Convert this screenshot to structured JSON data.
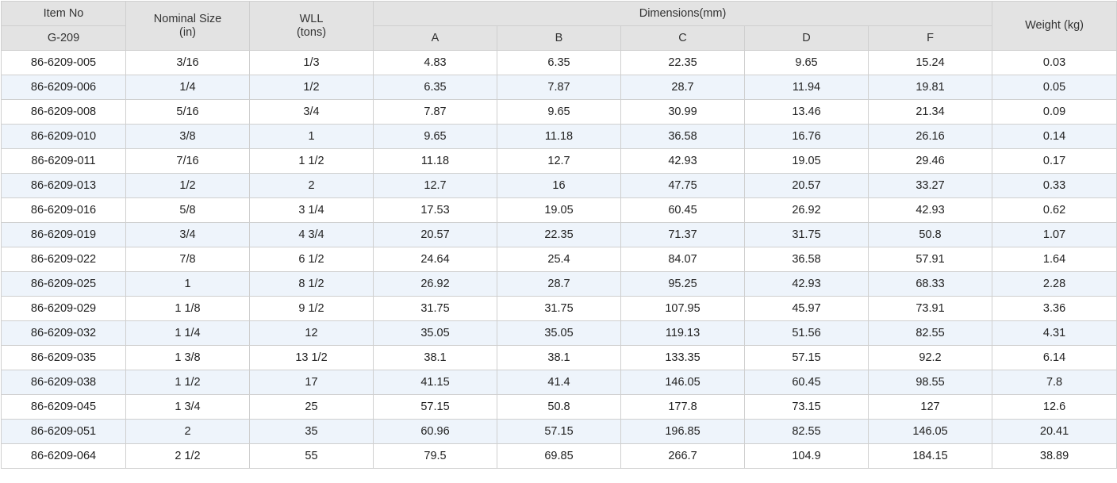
{
  "table": {
    "header": {
      "item_no": "Item No",
      "series": "G-209",
      "nominal_size": "Nominal Size",
      "nominal_size_unit": "(in)",
      "wll": "WLL",
      "wll_unit": "(tons)",
      "dimensions": "Dimensions(mm)",
      "dims": [
        "A",
        "B",
        "C",
        "D",
        "F"
      ],
      "weight": "Weight (kg)"
    },
    "rows": [
      [
        "86-6209-005",
        "3/16",
        "1/3",
        "4.83",
        "6.35",
        "22.35",
        "9.65",
        "15.24",
        "0.03"
      ],
      [
        "86-6209-006",
        "1/4",
        "1/2",
        "6.35",
        "7.87",
        "28.7",
        "11.94",
        "19.81",
        "0.05"
      ],
      [
        "86-6209-008",
        "5/16",
        "3/4",
        "7.87",
        "9.65",
        "30.99",
        "13.46",
        "21.34",
        "0.09"
      ],
      [
        "86-6209-010",
        "3/8",
        "1",
        "9.65",
        "11.18",
        "36.58",
        "16.76",
        "26.16",
        "0.14"
      ],
      [
        "86-6209-011",
        "7/16",
        "1 1/2",
        "11.18",
        "12.7",
        "42.93",
        "19.05",
        "29.46",
        "0.17"
      ],
      [
        "86-6209-013",
        "1/2",
        "2",
        "12.7",
        "16",
        "47.75",
        "20.57",
        "33.27",
        "0.33"
      ],
      [
        "86-6209-016",
        "5/8",
        "3 1/4",
        "17.53",
        "19.05",
        "60.45",
        "26.92",
        "42.93",
        "0.62"
      ],
      [
        "86-6209-019",
        "3/4",
        "4 3/4",
        "20.57",
        "22.35",
        "71.37",
        "31.75",
        "50.8",
        "1.07"
      ],
      [
        "86-6209-022",
        "7/8",
        "6 1/2",
        "24.64",
        "25.4",
        "84.07",
        "36.58",
        "57.91",
        "1.64"
      ],
      [
        "86-6209-025",
        "1",
        "8 1/2",
        "26.92",
        "28.7",
        "95.25",
        "42.93",
        "68.33",
        "2.28"
      ],
      [
        "86-6209-029",
        "1 1/8",
        "9 1/2",
        "31.75",
        "31.75",
        "107.95",
        "45.97",
        "73.91",
        "3.36"
      ],
      [
        "86-6209-032",
        "1 1/4",
        "12",
        "35.05",
        "35.05",
        "119.13",
        "51.56",
        "82.55",
        "4.31"
      ],
      [
        "86-6209-035",
        "1 3/8",
        "13 1/2",
        "38.1",
        "38.1",
        "133.35",
        "57.15",
        "92.2",
        "6.14"
      ],
      [
        "86-6209-038",
        "1 1/2",
        "17",
        "41.15",
        "41.4",
        "146.05",
        "60.45",
        "98.55",
        "7.8"
      ],
      [
        "86-6209-045",
        "1 3/4",
        "25",
        "57.15",
        "50.8",
        "177.8",
        "73.15",
        "127",
        "12.6"
      ],
      [
        "86-6209-051",
        "2",
        "35",
        "60.96",
        "57.15",
        "196.85",
        "82.55",
        "146.05",
        "20.41"
      ],
      [
        "86-6209-064",
        "2 1/2",
        "55",
        "79.5",
        "69.85",
        "266.7",
        "104.9",
        "184.15",
        "38.89"
      ]
    ]
  },
  "colors": {
    "header_bg": "#e3e3e3",
    "stripe_bg": "#eef4fb",
    "border": "#cfcfcf"
  }
}
